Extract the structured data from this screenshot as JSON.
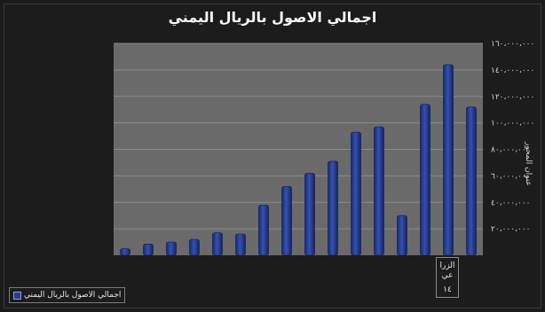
{
  "chart_data": {
    "type": "bar",
    "title": "اجمالي الاصول بالريال اليمني",
    "ylabel": "عنوان المحور",
    "ylim": [
      0,
      160000000
    ],
    "y_ticks": [
      "٢٠،٠٠٠،٠٠٠",
      "٤٠،٠٠٠،٠٠٠",
      "٦٠،٠٠٠،٠٠٠",
      "٨٠،٠٠٠،٠٠٠",
      "١٠٠،٠٠٠،٠٠٠",
      "١٢٠،٠٠٠،٠٠٠",
      "١٤٠،٠٠٠،٠٠٠",
      "١٦٠،٠٠٠،٠٠٠"
    ],
    "y_tick_values": [
      20000000,
      40000000,
      60000000,
      80000000,
      100000000,
      120000000,
      140000000,
      160000000
    ],
    "values": [
      5000000,
      8500000,
      10000000,
      12000000,
      17000000,
      16000000,
      38000000,
      52000000,
      62000000,
      71000000,
      93000000,
      97000000,
      30000000,
      114000000,
      144000000,
      112000000
    ],
    "grid": true,
    "category_label": "الزرا عي",
    "category_index": "١٤",
    "series": [
      {
        "name": "اجمالي الاصول بالريال اليمني",
        "color": "#2b3d93"
      }
    ],
    "legend_position": "bottom-left"
  }
}
